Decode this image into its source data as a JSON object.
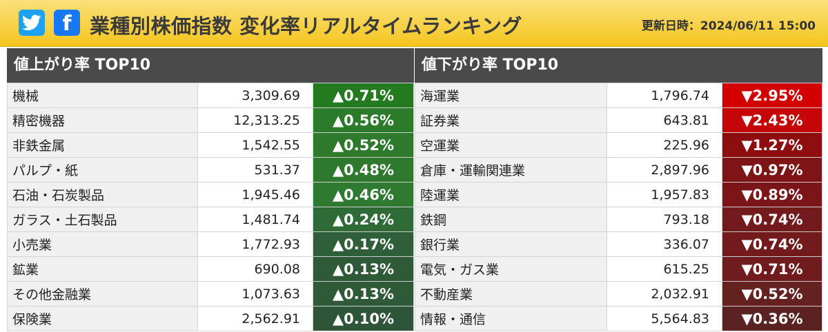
{
  "header": {
    "title": "業種別株価指数 変化率リアルタイムランキング",
    "updated": "更新日時：2024/06/11 15:00",
    "twitter_icon": "twitter-bird-icon",
    "facebook_icon": "facebook-f-icon",
    "facebook_glyph": "f"
  },
  "colors": {
    "header_bg": "#f4c51e",
    "panel_head_bg": "#4a4a4a",
    "up_strong": "#2e7d32",
    "down_strong": "#d50000"
  },
  "gainers": {
    "heading": "値上がり率 TOP10",
    "rows": [
      {
        "name": "機械",
        "value": "3,309.69",
        "change": "▲0.71%",
        "color": "#237a1f"
      },
      {
        "name": "精密機器",
        "value": "12,313.25",
        "change": "▲0.56%",
        "color": "#2b7b2a"
      },
      {
        "name": "非鉄金属",
        "value": "1,542.55",
        "change": "▲0.52%",
        "color": "#2d7a2d"
      },
      {
        "name": "パルプ・紙",
        "value": "531.37",
        "change": "▲0.48%",
        "color": "#2f792f"
      },
      {
        "name": "石油・石炭製品",
        "value": "1,945.46",
        "change": "▲0.46%",
        "color": "#2f7a31"
      },
      {
        "name": "ガラス・土石製品",
        "value": "1,481.74",
        "change": "▲0.24%",
        "color": "#2f6b37"
      },
      {
        "name": "小売業",
        "value": "1,772.93",
        "change": "▲0.17%",
        "color": "#2f5f38"
      },
      {
        "name": "鉱業",
        "value": "690.08",
        "change": "▲0.13%",
        "color": "#2f5a38"
      },
      {
        "name": "その他金融業",
        "value": "1,073.63",
        "change": "▲0.13%",
        "color": "#2f5a38"
      },
      {
        "name": "保険業",
        "value": "2,562.91",
        "change": "▲0.10%",
        "color": "#2e5537"
      }
    ]
  },
  "losers": {
    "heading": "値下がり率 TOP10",
    "rows": [
      {
        "name": "海運業",
        "value": "1,796.74",
        "change": "▼2.95%",
        "color": "#d30000"
      },
      {
        "name": "証券業",
        "value": "643.81",
        "change": "▼2.43%",
        "color": "#c60606"
      },
      {
        "name": "空運業",
        "value": "225.96",
        "change": "▼1.27%",
        "color": "#8e0e10"
      },
      {
        "name": "倉庫・運輸関連業",
        "value": "2,897.96",
        "change": "▼0.97%",
        "color": "#7f1416"
      },
      {
        "name": "陸運業",
        "value": "1,957.83",
        "change": "▼0.89%",
        "color": "#7c1518"
      },
      {
        "name": "鉄鋼",
        "value": "793.18",
        "change": "▼0.74%",
        "color": "#731a1c"
      },
      {
        "name": "銀行業",
        "value": "336.07",
        "change": "▼0.74%",
        "color": "#731a1c"
      },
      {
        "name": "電気・ガス業",
        "value": "615.25",
        "change": "▼0.71%",
        "color": "#701b1d"
      },
      {
        "name": "不動産業",
        "value": "2,032.91",
        "change": "▼0.52%",
        "color": "#652020"
      },
      {
        "name": "情報・通信",
        "value": "5,564.83",
        "change": "▼0.36%",
        "color": "#5b2222"
      }
    ]
  }
}
